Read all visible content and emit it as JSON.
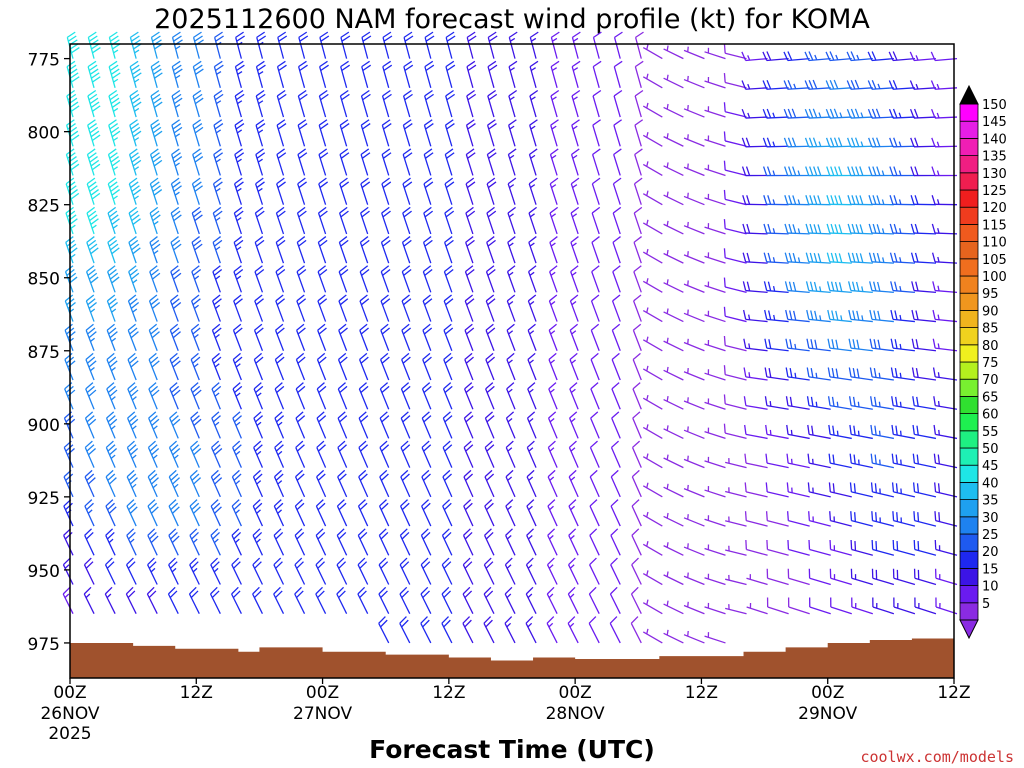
{
  "chart_data": {
    "type": "wind-barb-time-height",
    "title": "2025112600 NAM forecast wind profile (kt) for KOMA",
    "xlabel": "Forecast Time (UTC)",
    "units": "kt",
    "x_ticks": [
      {
        "hour": 0,
        "top": "00Z",
        "mid": "26NOV",
        "bottom": "2025"
      },
      {
        "hour": 12,
        "top": "12Z",
        "mid": "",
        "bottom": ""
      },
      {
        "hour": 24,
        "top": "00Z",
        "mid": "27NOV",
        "bottom": ""
      },
      {
        "hour": 36,
        "top": "12Z",
        "mid": "",
        "bottom": ""
      },
      {
        "hour": 48,
        "top": "00Z",
        "mid": "28NOV",
        "bottom": ""
      },
      {
        "hour": 60,
        "top": "12Z",
        "mid": "",
        "bottom": ""
      },
      {
        "hour": 72,
        "top": "00Z",
        "mid": "29NOV",
        "bottom": ""
      },
      {
        "hour": 84,
        "top": "12Z",
        "mid": "",
        "bottom": ""
      }
    ],
    "xlim": [
      0,
      84
    ],
    "y_ticks": [
      "775",
      "800",
      "825",
      "850",
      "875",
      "900",
      "925",
      "950",
      "975"
    ],
    "y_tick_values": [
      775,
      800,
      825,
      850,
      875,
      900,
      925,
      950,
      975
    ],
    "ylim_hpa": [
      770,
      987
    ],
    "barb_hours": [
      0,
      2,
      4,
      6,
      8,
      10,
      12,
      14,
      16,
      18,
      20,
      22,
      24,
      26,
      28,
      30,
      32,
      34,
      36,
      38,
      40,
      42,
      44,
      46,
      48,
      50,
      52,
      54,
      56,
      58,
      60,
      62,
      64,
      66,
      68,
      70,
      72,
      74,
      76,
      78,
      80,
      82,
      84
    ],
    "barb_levels_hpa": [
      775,
      785,
      795,
      805,
      815,
      825,
      835,
      845,
      855,
      865,
      875,
      885,
      895,
      905,
      915,
      925,
      935,
      945,
      955,
      965,
      975
    ],
    "surface_pressure_hpa": [
      {
        "hour": 0,
        "p": 975
      },
      {
        "hour": 6,
        "p": 976
      },
      {
        "hour": 10,
        "p": 977
      },
      {
        "hour": 16,
        "p": 978
      },
      {
        "hour": 18,
        "p": 976.5
      },
      {
        "hour": 24,
        "p": 978
      },
      {
        "hour": 30,
        "p": 979
      },
      {
        "hour": 36,
        "p": 980
      },
      {
        "hour": 40,
        "p": 981
      },
      {
        "hour": 44,
        "p": 980
      },
      {
        "hour": 48,
        "p": 980.5
      },
      {
        "hour": 52,
        "p": 980.5
      },
      {
        "hour": 56,
        "p": 979.5
      },
      {
        "hour": 64,
        "p": 978
      },
      {
        "hour": 68,
        "p": 976.5
      },
      {
        "hour": 72,
        "p": 975
      },
      {
        "hour": 76,
        "p": 974
      },
      {
        "hour": 80,
        "p": 973.5
      },
      {
        "hour": 84,
        "p": 973.5
      }
    ],
    "colorbar": {
      "labels": [
        "5",
        "10",
        "15",
        "20",
        "25",
        "30",
        "35",
        "40",
        "45",
        "50",
        "55",
        "60",
        "65",
        "70",
        "75",
        "80",
        "85",
        "90",
        "95",
        "100",
        "105",
        "110",
        "115",
        "120",
        "125",
        "130",
        "135",
        "140",
        "145",
        "150"
      ],
      "colors": [
        "#8a2be2",
        "#6a1bf0",
        "#3c14e6",
        "#1e28f0",
        "#1e5af0",
        "#1e82f0",
        "#1ea0f0",
        "#1ebef0",
        "#1ee6e6",
        "#1ef0b4",
        "#1ef082",
        "#1ef050",
        "#30e030",
        "#78f030",
        "#b4f01e",
        "#f0f01e",
        "#f0d21e",
        "#f0b41e",
        "#f0961e",
        "#f0821e",
        "#f06e1e",
        "#e6641e",
        "#f05a1e",
        "#f03c1e",
        "#f01e1e",
        "#f01e50",
        "#f01e82",
        "#f01eb4",
        "#e61ee6",
        "#ff00ff"
      ]
    },
    "ground_color": "#a0522d",
    "credit": "coolwx.com/models"
  }
}
